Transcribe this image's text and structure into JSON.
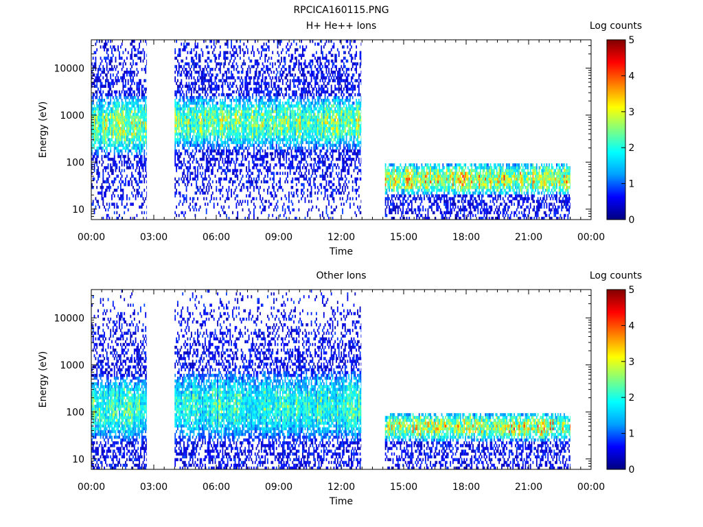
{
  "figure_title": "RPCICA160115.PNG",
  "colors": {
    "colormap": [
      "#000080",
      "#0000ff",
      "#00a0ff",
      "#00ffff",
      "#80ff80",
      "#ffff00",
      "#ff8000",
      "#ff0000",
      "#800000"
    ],
    "background": "#ffffff",
    "axis": "#000000"
  },
  "chart_data": [
    {
      "type": "heatmap",
      "title": "H+ He++ Ions",
      "xlabel": "Time",
      "ylabel": "Energy (eV)",
      "x_ticks": [
        "00:00",
        "03:00",
        "06:00",
        "09:00",
        "12:00",
        "15:00",
        "18:00",
        "21:00",
        "00:00"
      ],
      "xlim_hours": [
        0,
        24
      ],
      "y_scale": "log",
      "ylim": [
        6,
        40000
      ],
      "y_ticks": [
        10,
        100,
        1000,
        10000
      ],
      "colorbar": {
        "label": "Log counts",
        "range": [
          0,
          5
        ],
        "ticks": [
          0,
          1,
          2,
          3,
          4,
          5
        ]
      },
      "data_intervals_hours": [
        [
          0.0,
          2.65
        ],
        [
          4.0,
          12.95
        ],
        [
          14.1,
          23.0
        ]
      ],
      "segments": [
        {
          "x": [
            0.0,
            2.65
          ],
          "dense_band_eV": [
            150,
            2500
          ],
          "peak_log_counts": 2.8,
          "sparse_to_eV": 40000,
          "sparse_from_eV": 6
        },
        {
          "x": [
            4.0,
            12.95
          ],
          "dense_band_eV": [
            200,
            2500
          ],
          "peak_log_counts": 2.7,
          "sparse_to_eV": 40000,
          "sparse_from_eV": 6
        },
        {
          "x": [
            14.1,
            23.0
          ],
          "dense_band_eV": [
            20,
            95
          ],
          "peak_log_counts": 3.3,
          "sparse_to_eV": 95,
          "sparse_from_eV": 6
        }
      ]
    },
    {
      "type": "heatmap",
      "title": "Other Ions",
      "xlabel": "Time",
      "ylabel": "Energy (eV)",
      "x_ticks": [
        "00:00",
        "03:00",
        "06:00",
        "09:00",
        "12:00",
        "15:00",
        "18:00",
        "21:00",
        "00:00"
      ],
      "xlim_hours": [
        0,
        24
      ],
      "y_scale": "log",
      "ylim": [
        6,
        40000
      ],
      "y_ticks": [
        10,
        100,
        1000,
        10000
      ],
      "colorbar": {
        "label": "Log counts",
        "range": [
          0,
          5
        ],
        "ticks": [
          0,
          1,
          2,
          3,
          4,
          5
        ]
      },
      "data_intervals_hours": [
        [
          0.0,
          2.65
        ],
        [
          4.0,
          12.95
        ],
        [
          14.1,
          23.0
        ]
      ],
      "segments": [
        {
          "x": [
            0.0,
            2.65
          ],
          "dense_band_eV": [
            25,
            600
          ],
          "peak_log_counts": 2.4,
          "sparse_to_eV": 40000,
          "sparse_from_eV": 6
        },
        {
          "x": [
            4.0,
            12.95
          ],
          "dense_band_eV": [
            25,
            700
          ],
          "peak_log_counts": 2.3,
          "sparse_to_eV": 40000,
          "sparse_from_eV": 6
        },
        {
          "x": [
            14.1,
            23.0
          ],
          "dense_band_eV": [
            25,
            95
          ],
          "peak_log_counts": 3.3,
          "sparse_to_eV": 95,
          "sparse_from_eV": 6
        }
      ]
    }
  ]
}
